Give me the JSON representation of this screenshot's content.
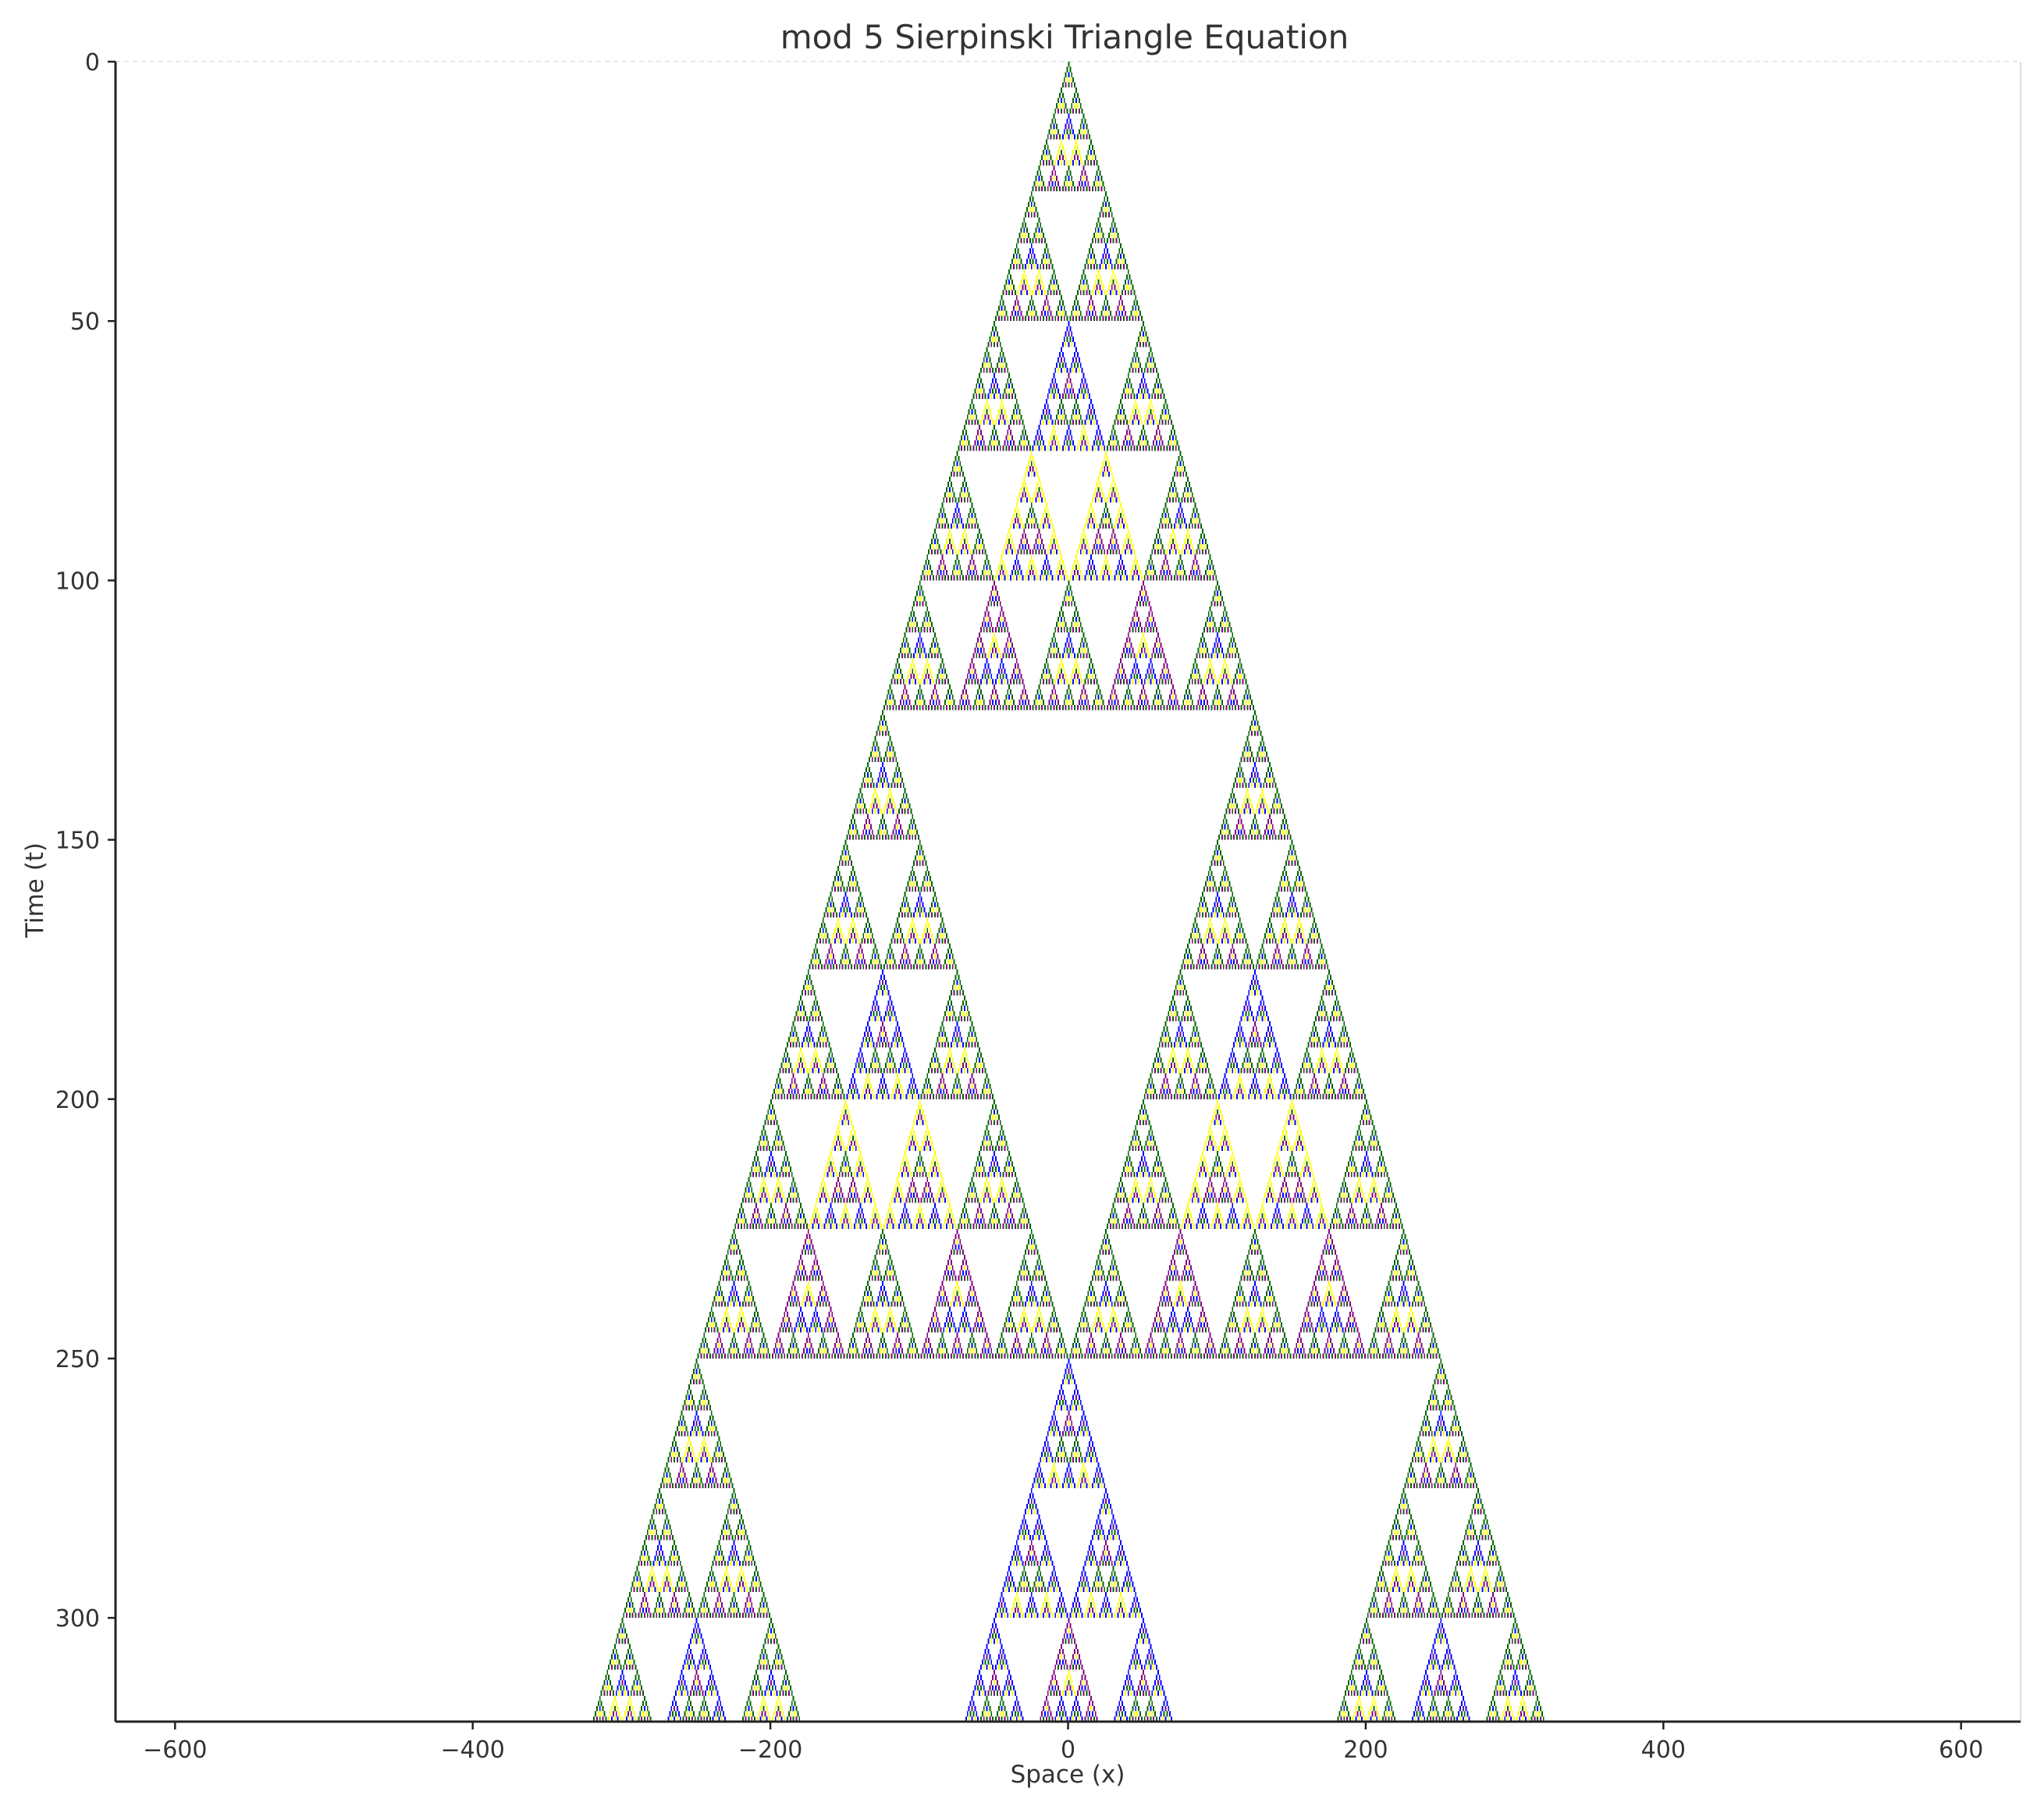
{
  "chart_data": {
    "type": "heatmap",
    "title": "mod 5 Sierpinski Triangle Equation",
    "xlabel": "Space (x)",
    "ylabel": "Time (t)",
    "modulus": 5,
    "generations": 320,
    "xlim": [
      -640,
      640
    ],
    "ylim": [
      320,
      0
    ],
    "y_inverted": true,
    "grid": true,
    "xticks": [
      -600,
      -400,
      -200,
      0,
      200,
      400,
      600
    ],
    "xtick_labels": [
      "−600",
      "−400",
      "−200",
      "0",
      "200",
      "400",
      "600"
    ],
    "yticks": [
      0,
      50,
      100,
      150,
      200,
      250,
      300
    ],
    "ytick_labels": [
      "0",
      "50",
      "100",
      "150",
      "200",
      "250",
      "300"
    ],
    "value_colors": {
      "0": "#ffffff",
      "1": "#006400",
      "2": "#0000ff",
      "3": "#ffff00",
      "4": "#800080"
    }
  }
}
